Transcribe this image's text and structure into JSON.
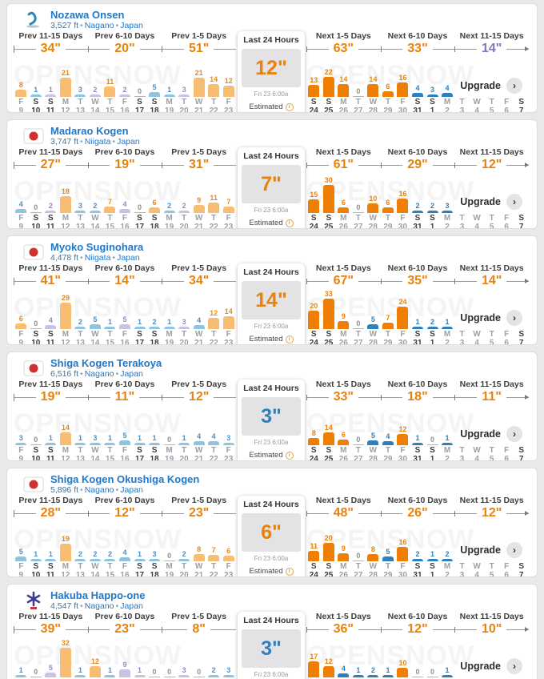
{
  "watermark": "OPENSNOW",
  "upgrade": {
    "label": "Upgrade",
    "chevron": "›"
  },
  "last24": {
    "title": "Last 24 Hours",
    "time": "Fri 23 6:00a",
    "estimated_label": "Estimated",
    "info_glyph": "i"
  },
  "prev_headers": [
    "Prev 11-15 Days",
    "Prev 6-10 Days",
    "Prev 1-5 Days"
  ],
  "next_headers": [
    "Next 1-5 Days",
    "Next 6-10 Days",
    "Next 11-15 Days"
  ],
  "prev_days": [
    {
      "d": "F",
      "n": "9",
      "wk": false
    },
    {
      "d": "S",
      "n": "10",
      "wk": true
    },
    {
      "d": "S",
      "n": "11",
      "wk": true
    },
    {
      "d": "M",
      "n": "12",
      "wk": false
    },
    {
      "d": "T",
      "n": "13",
      "wk": false
    },
    {
      "d": "W",
      "n": "14",
      "wk": false
    },
    {
      "d": "T",
      "n": "15",
      "wk": false
    },
    {
      "d": "F",
      "n": "16",
      "wk": false
    },
    {
      "d": "S",
      "n": "17",
      "wk": true
    },
    {
      "d": "S",
      "n": "18",
      "wk": true
    },
    {
      "d": "M",
      "n": "19",
      "wk": false
    },
    {
      "d": "T",
      "n": "20",
      "wk": false
    },
    {
      "d": "W",
      "n": "21",
      "wk": false
    },
    {
      "d": "T",
      "n": "22",
      "wk": false
    },
    {
      "d": "F",
      "n": "23",
      "wk": false
    }
  ],
  "next_days": [
    {
      "d": "S",
      "n": "24",
      "wk": true
    },
    {
      "d": "S",
      "n": "25",
      "wk": true
    },
    {
      "d": "M",
      "n": "26",
      "wk": false
    },
    {
      "d": "T",
      "n": "27",
      "wk": false
    },
    {
      "d": "W",
      "n": "28",
      "wk": false
    },
    {
      "d": "T",
      "n": "29",
      "wk": false
    },
    {
      "d": "F",
      "n": "30",
      "wk": false
    },
    {
      "d": "S",
      "n": "31",
      "wk": true
    },
    {
      "d": "S",
      "n": "1",
      "wk": true
    },
    {
      "d": "M",
      "n": "2",
      "wk": false
    },
    {
      "d": "T",
      "n": "3",
      "wk": false
    },
    {
      "d": "W",
      "n": "4",
      "wk": false
    },
    {
      "d": "T",
      "n": "5",
      "wk": false
    },
    {
      "d": "F",
      "n": "6",
      "wk": false
    },
    {
      "d": "S",
      "n": "7",
      "wk": true
    }
  ],
  "colors": {
    "orange_total": "#e8820a",
    "purple_total": "#8474b8",
    "blue_total": "#2b80bd",
    "po_bar": "#f7bd73",
    "po_num": "#e38b1c",
    "pb_bar": "#8ec4e2",
    "pb_num": "#4a90c8",
    "pp_bar": "#c9c2e4",
    "pp_num": "#9488c8",
    "fo_bar": "#ee7e04",
    "fo_num": "#e8820a",
    "fb_bar": "#2b80bd",
    "fb_num": "#2b80bd",
    "z_bar": "#b5b5b5",
    "z_num": "#8f8f8f"
  },
  "resorts": [
    {
      "name": "Nozawa Onsen",
      "elev": "3,527 ft",
      "region": "Nagano",
      "country": "Japan",
      "icon": "nozawa-logo",
      "prev_totals": [
        {
          "v": "34\"",
          "c": "orange"
        },
        {
          "v": "20\"",
          "c": "orange"
        },
        {
          "v": "51\"",
          "c": "orange"
        }
      ],
      "next_totals": [
        {
          "v": "63\"",
          "c": "orange"
        },
        {
          "v": "33\"",
          "c": "orange"
        },
        {
          "v": "14\"",
          "c": "purple"
        }
      ],
      "last24": {
        "value": "12\"",
        "c": "orange"
      },
      "prev_bars": [
        {
          "v": 8,
          "c": "po"
        },
        {
          "v": 1,
          "c": "pb"
        },
        {
          "v": 1,
          "c": "pp"
        },
        {
          "v": 21,
          "c": "po"
        },
        {
          "v": 3,
          "c": "pb"
        },
        {
          "v": 2,
          "c": "pp"
        },
        {
          "v": 11,
          "c": "po"
        },
        {
          "v": 2,
          "c": "pp"
        },
        {
          "v": 0,
          "c": "z"
        },
        {
          "v": 5,
          "c": "pb"
        },
        {
          "v": 1,
          "c": "pb"
        },
        {
          "v": 3,
          "c": "pp"
        },
        {
          "v": 21,
          "c": "po"
        },
        {
          "v": 14,
          "c": "po"
        },
        {
          "v": 12,
          "c": "po"
        }
      ],
      "next_bars": [
        {
          "v": 13,
          "c": "fo"
        },
        {
          "v": 22,
          "c": "fo"
        },
        {
          "v": 14,
          "c": "fo"
        },
        {
          "v": 0,
          "c": "z"
        },
        {
          "v": 14,
          "c": "fo"
        },
        {
          "v": 6,
          "c": "fo"
        },
        {
          "v": 16,
          "c": "fo"
        },
        {
          "v": 4,
          "c": "fb"
        },
        {
          "v": 3,
          "c": "fb"
        },
        {
          "v": 4,
          "c": "fb"
        }
      ]
    },
    {
      "name": "Madarao Kogen",
      "elev": "3,747 ft",
      "region": "Niigata",
      "country": "Japan",
      "icon": "japan-flag",
      "prev_totals": [
        {
          "v": "27\"",
          "c": "orange"
        },
        {
          "v": "19\"",
          "c": "orange"
        },
        {
          "v": "31\"",
          "c": "orange"
        }
      ],
      "next_totals": [
        {
          "v": "61\"",
          "c": "orange"
        },
        {
          "v": "29\"",
          "c": "orange"
        },
        {
          "v": "12\"",
          "c": "orange"
        }
      ],
      "last24": {
        "value": "7\"",
        "c": "orange"
      },
      "prev_bars": [
        {
          "v": 4,
          "c": "pb"
        },
        {
          "v": 0,
          "c": "z"
        },
        {
          "v": 2,
          "c": "pp"
        },
        {
          "v": 18,
          "c": "po"
        },
        {
          "v": 3,
          "c": "pb"
        },
        {
          "v": 2,
          "c": "pb"
        },
        {
          "v": 7,
          "c": "po"
        },
        {
          "v": 4,
          "c": "pp"
        },
        {
          "v": 0,
          "c": "z"
        },
        {
          "v": 6,
          "c": "po"
        },
        {
          "v": 2,
          "c": "pb"
        },
        {
          "v": 2,
          "c": "pp"
        },
        {
          "v": 9,
          "c": "po"
        },
        {
          "v": 11,
          "c": "po"
        },
        {
          "v": 7,
          "c": "po"
        }
      ],
      "next_bars": [
        {
          "v": 15,
          "c": "fo"
        },
        {
          "v": 30,
          "c": "fo"
        },
        {
          "v": 6,
          "c": "fo"
        },
        {
          "v": 0,
          "c": "z"
        },
        {
          "v": 10,
          "c": "fo"
        },
        {
          "v": 6,
          "c": "fo"
        },
        {
          "v": 16,
          "c": "fo"
        },
        {
          "v": 2,
          "c": "fb"
        },
        {
          "v": 2,
          "c": "fb"
        },
        {
          "v": 3,
          "c": "fb"
        }
      ]
    },
    {
      "name": "Myoko Suginohara",
      "elev": "4,478 ft",
      "region": "Niigata",
      "country": "Japan",
      "icon": "japan-flag",
      "prev_totals": [
        {
          "v": "41\"",
          "c": "orange"
        },
        {
          "v": "14\"",
          "c": "orange"
        },
        {
          "v": "34\"",
          "c": "orange"
        }
      ],
      "next_totals": [
        {
          "v": "67\"",
          "c": "orange"
        },
        {
          "v": "35\"",
          "c": "orange"
        },
        {
          "v": "14\"",
          "c": "orange"
        }
      ],
      "last24": {
        "value": "14\"",
        "c": "orange"
      },
      "prev_bars": [
        {
          "v": 6,
          "c": "po"
        },
        {
          "v": 0,
          "c": "z"
        },
        {
          "v": 4,
          "c": "pp"
        },
        {
          "v": 29,
          "c": "po"
        },
        {
          "v": 2,
          "c": "pb"
        },
        {
          "v": 5,
          "c": "pb"
        },
        {
          "v": 1,
          "c": "pb"
        },
        {
          "v": 5,
          "c": "pp"
        },
        {
          "v": 1,
          "c": "pb"
        },
        {
          "v": 2,
          "c": "pb"
        },
        {
          "v": 1,
          "c": "pb"
        },
        {
          "v": 3,
          "c": "pp"
        },
        {
          "v": 4,
          "c": "pb"
        },
        {
          "v": 12,
          "c": "po"
        },
        {
          "v": 14,
          "c": "po"
        }
      ],
      "next_bars": [
        {
          "v": 20,
          "c": "fo"
        },
        {
          "v": 33,
          "c": "fo"
        },
        {
          "v": 9,
          "c": "fo"
        },
        {
          "v": 0,
          "c": "z"
        },
        {
          "v": 5,
          "c": "fb"
        },
        {
          "v": 7,
          "c": "fo"
        },
        {
          "v": 24,
          "c": "fo"
        },
        {
          "v": 1,
          "c": "fb"
        },
        {
          "v": 2,
          "c": "fb"
        },
        {
          "v": 1,
          "c": "fb"
        }
      ]
    },
    {
      "name": "Shiga Kogen Terakoya",
      "elev": "6,516 ft",
      "region": "Nagano",
      "country": "Japan",
      "icon": "japan-flag",
      "prev_totals": [
        {
          "v": "19\"",
          "c": "orange"
        },
        {
          "v": "11\"",
          "c": "orange"
        },
        {
          "v": "12\"",
          "c": "orange"
        }
      ],
      "next_totals": [
        {
          "v": "33\"",
          "c": "orange"
        },
        {
          "v": "18\"",
          "c": "orange"
        },
        {
          "v": "11\"",
          "c": "orange"
        }
      ],
      "last24": {
        "value": "3\"",
        "c": "blue"
      },
      "prev_bars": [
        {
          "v": 3,
          "c": "pb"
        },
        {
          "v": 0,
          "c": "z"
        },
        {
          "v": 1,
          "c": "pb"
        },
        {
          "v": 14,
          "c": "po"
        },
        {
          "v": 1,
          "c": "pb"
        },
        {
          "v": 3,
          "c": "pb"
        },
        {
          "v": 1,
          "c": "pb"
        },
        {
          "v": 5,
          "c": "pb"
        },
        {
          "v": 1,
          "c": "pb"
        },
        {
          "v": 1,
          "c": "pb"
        },
        {
          "v": 0,
          "c": "z"
        },
        {
          "v": 1,
          "c": "pb"
        },
        {
          "v": 4,
          "c": "pb"
        },
        {
          "v": 4,
          "c": "pb"
        },
        {
          "v": 3,
          "c": "pb"
        }
      ],
      "next_bars": [
        {
          "v": 8,
          "c": "fo"
        },
        {
          "v": 14,
          "c": "fo"
        },
        {
          "v": 6,
          "c": "fo"
        },
        {
          "v": 0,
          "c": "z"
        },
        {
          "v": 5,
          "c": "fb"
        },
        {
          "v": 4,
          "c": "fb"
        },
        {
          "v": 12,
          "c": "fo"
        },
        {
          "v": 1,
          "c": "fb"
        },
        {
          "v": 0,
          "c": "z"
        },
        {
          "v": 1,
          "c": "fb"
        }
      ]
    },
    {
      "name": "Shiga Kogen Okushiga Kogen",
      "elev": "5,896 ft",
      "region": "Nagano",
      "country": "Japan",
      "icon": "japan-flag",
      "prev_totals": [
        {
          "v": "28\"",
          "c": "orange"
        },
        {
          "v": "12\"",
          "c": "orange"
        },
        {
          "v": "23\"",
          "c": "orange"
        }
      ],
      "next_totals": [
        {
          "v": "48\"",
          "c": "orange"
        },
        {
          "v": "26\"",
          "c": "orange"
        },
        {
          "v": "12\"",
          "c": "orange"
        }
      ],
      "last24": {
        "value": "6\"",
        "c": "orange"
      },
      "prev_bars": [
        {
          "v": 5,
          "c": "pb"
        },
        {
          "v": 1,
          "c": "pb"
        },
        {
          "v": 1,
          "c": "pb"
        },
        {
          "v": 19,
          "c": "po"
        },
        {
          "v": 2,
          "c": "pb"
        },
        {
          "v": 2,
          "c": "pb"
        },
        {
          "v": 2,
          "c": "pb"
        },
        {
          "v": 4,
          "c": "pb"
        },
        {
          "v": 1,
          "c": "pb"
        },
        {
          "v": 3,
          "c": "pb"
        },
        {
          "v": 0,
          "c": "z"
        },
        {
          "v": 2,
          "c": "pb"
        },
        {
          "v": 8,
          "c": "po"
        },
        {
          "v": 7,
          "c": "po"
        },
        {
          "v": 6,
          "c": "po"
        }
      ],
      "next_bars": [
        {
          "v": 11,
          "c": "fo"
        },
        {
          "v": 20,
          "c": "fo"
        },
        {
          "v": 9,
          "c": "fo"
        },
        {
          "v": 0,
          "c": "z"
        },
        {
          "v": 8,
          "c": "fo"
        },
        {
          "v": 5,
          "c": "fb"
        },
        {
          "v": 16,
          "c": "fo"
        },
        {
          "v": 2,
          "c": "fb"
        },
        {
          "v": 1,
          "c": "fb"
        },
        {
          "v": 2,
          "c": "fb"
        }
      ]
    },
    {
      "name": "Hakuba Happo-one",
      "elev": "4,547 ft",
      "region": "Nagano",
      "country": "Japan",
      "icon": "hakuba-logo",
      "prev_totals": [
        {
          "v": "39\"",
          "c": "orange"
        },
        {
          "v": "23\"",
          "c": "orange"
        },
        {
          "v": "8\"",
          "c": "orange"
        }
      ],
      "next_totals": [
        {
          "v": "36\"",
          "c": "orange"
        },
        {
          "v": "12\"",
          "c": "orange"
        },
        {
          "v": "10\"",
          "c": "orange"
        }
      ],
      "last24": {
        "value": "3\"",
        "c": "blue"
      },
      "prev_bars": [
        {
          "v": 1,
          "c": "pb"
        },
        {
          "v": 0,
          "c": "z"
        },
        {
          "v": 5,
          "c": "pp"
        },
        {
          "v": 32,
          "c": "po"
        },
        {
          "v": 1,
          "c": "pb"
        },
        {
          "v": 12,
          "c": "po"
        },
        {
          "v": 1,
          "c": "pb"
        },
        {
          "v": 9,
          "c": "pp"
        },
        {
          "v": 1,
          "c": "pp"
        },
        {
          "v": 0,
          "c": "z"
        },
        {
          "v": 0,
          "c": "z"
        },
        {
          "v": 3,
          "c": "pp"
        },
        {
          "v": 0,
          "c": "z"
        },
        {
          "v": 2,
          "c": "pb"
        },
        {
          "v": 3,
          "c": "pb"
        }
      ],
      "next_bars": [
        {
          "v": 17,
          "c": "fo"
        },
        {
          "v": 12,
          "c": "fo"
        },
        {
          "v": 4,
          "c": "fb"
        },
        {
          "v": 1,
          "c": "fb"
        },
        {
          "v": 2,
          "c": "fb"
        },
        {
          "v": 1,
          "c": "fb"
        },
        {
          "v": 10,
          "c": "fo"
        },
        {
          "v": 0,
          "c": "z"
        },
        {
          "v": 0,
          "c": "z"
        },
        {
          "v": 1,
          "c": "fb"
        }
      ]
    }
  ]
}
